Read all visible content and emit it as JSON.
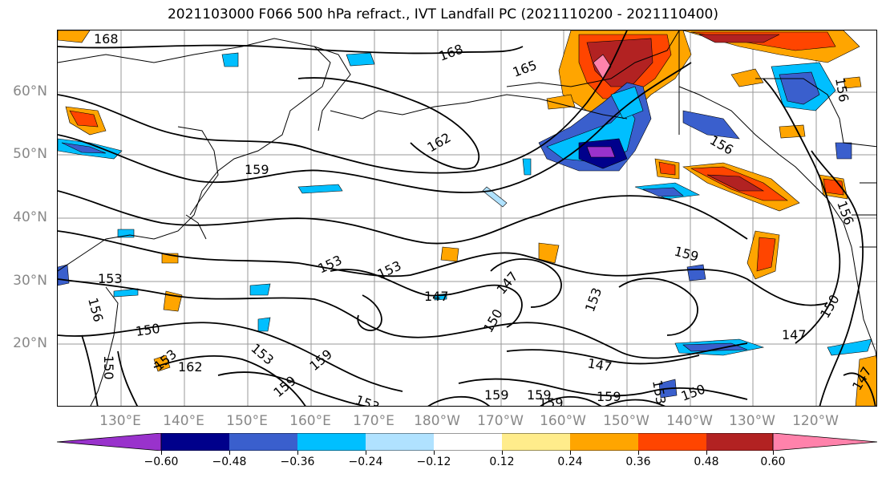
{
  "title": "2021103000 F066 500 hPa refract., IVT Landfall PC (2021110200 - 2021110400)",
  "map": {
    "lat_labels": [
      "60°N",
      "50°N",
      "40°N",
      "30°N",
      "20°N"
    ],
    "lon_labels": [
      "130°E",
      "140°E",
      "150°E",
      "160°E",
      "170°E",
      "180°W",
      "170°W",
      "160°W",
      "150°W",
      "140°W",
      "130°W",
      "120°W"
    ],
    "contour_labels": [
      "168",
      "168",
      "165",
      "162",
      "159",
      "159",
      "156",
      "153",
      "153",
      "156",
      "153",
      "150",
      "147",
      "147",
      "150",
      "153",
      "147",
      "150",
      "147",
      "150",
      "153",
      "159",
      "159",
      "159",
      "159",
      "156",
      "162",
      "153",
      "156",
      "150",
      "153",
      "153",
      "147",
      "159",
      "159"
    ],
    "shading_variable": "IVT Landfall PC",
    "contour_variable": "500 hPa refractivity"
  },
  "colorbar": {
    "ticks": [
      "−0.60",
      "−0.48",
      "−0.36",
      "−0.24",
      "−0.12",
      "0.12",
      "0.24",
      "0.36",
      "0.48",
      "0.60"
    ],
    "colors": [
      "#9932CC",
      "#00008B",
      "#3A5FCD",
      "#00BFFF",
      "#B0E2FF",
      "#FFFFFF",
      "#FFEC8B",
      "#FFA500",
      "#FF4500",
      "#B22222",
      "#FF82AB"
    ]
  }
}
